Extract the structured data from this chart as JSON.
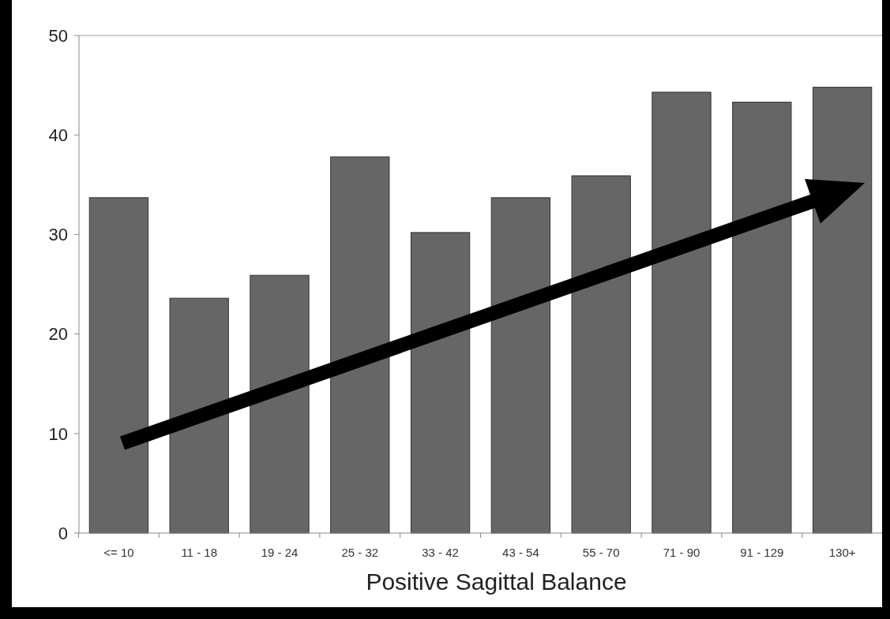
{
  "chart_data": {
    "type": "bar",
    "xlabel": "Positive Sagittal Balance",
    "categories": [
      "<= 10",
      "11 - 18",
      "19 - 24",
      "25 - 32",
      "33 - 42",
      "43 - 54",
      "55 - 70",
      "71 - 90",
      "91 - 129",
      "130+"
    ],
    "values": [
      33.7,
      23.6,
      25.9,
      37.8,
      30.2,
      33.7,
      35.9,
      44.3,
      43.3,
      44.8
    ],
    "color": "#666666",
    "ylim": [
      0,
      50
    ],
    "yticks": [
      0,
      10,
      20,
      30,
      40,
      50
    ],
    "grid": false
  }
}
